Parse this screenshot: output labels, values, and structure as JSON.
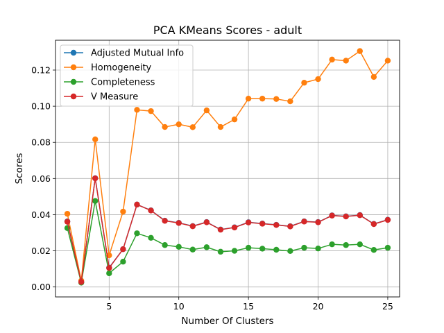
{
  "chart_data": {
    "type": "line",
    "title": "PCA KMeans Scores - adult",
    "xlabel": "Number Of Clusters",
    "ylabel": "Scores",
    "xlim": [
      1.15,
      25.85
    ],
    "ylim": [
      -0.0055,
      0.1365
    ],
    "xticks": [
      5,
      10,
      15,
      20,
      25
    ],
    "yticks": [
      0.0,
      0.02,
      0.04,
      0.06,
      0.08,
      0.1,
      0.12
    ],
    "ytick_labels": [
      "0.00",
      "0.02",
      "0.04",
      "0.06",
      "0.08",
      "0.10",
      "0.12"
    ],
    "grid": true,
    "legend_position": "top-left",
    "x": [
      2,
      3,
      4,
      5,
      6,
      7,
      8,
      9,
      10,
      11,
      12,
      13,
      14,
      15,
      16,
      17,
      18,
      19,
      20,
      21,
      22,
      23,
      24,
      25
    ],
    "series": [
      {
        "name": "Adjusted Mutual Info",
        "color": "#1f77b4",
        "values": [
          0.0363,
          0.0027,
          0.0602,
          0.0107,
          0.0209,
          0.0456,
          0.0424,
          0.0367,
          0.0355,
          0.0337,
          0.0359,
          0.0318,
          0.033,
          0.0358,
          0.0351,
          0.0344,
          0.0336,
          0.0363,
          0.0359,
          0.0396,
          0.0391,
          0.0398,
          0.0349,
          0.0372
        ]
      },
      {
        "name": "Homogeneity",
        "color": "#ff7f0e",
        "values": [
          0.0405,
          0.0035,
          0.0817,
          0.0175,
          0.0417,
          0.098,
          0.0973,
          0.0885,
          0.09,
          0.0884,
          0.0977,
          0.0885,
          0.0927,
          0.1042,
          0.1042,
          0.104,
          0.1027,
          0.113,
          0.115,
          0.1258,
          0.1252,
          0.1305,
          0.1162,
          0.1252
        ]
      },
      {
        "name": "Completeness",
        "color": "#2ca02c",
        "values": [
          0.0326,
          0.0024,
          0.0476,
          0.0076,
          0.014,
          0.0297,
          0.0272,
          0.0232,
          0.0222,
          0.0207,
          0.022,
          0.0195,
          0.02,
          0.0217,
          0.0212,
          0.0206,
          0.0199,
          0.0217,
          0.0213,
          0.0236,
          0.0232,
          0.0236,
          0.0205,
          0.0217
        ]
      },
      {
        "name": "V Measure",
        "color": "#d62728",
        "values": [
          0.0361,
          0.0028,
          0.0601,
          0.0105,
          0.0209,
          0.0456,
          0.0423,
          0.0366,
          0.0354,
          0.0336,
          0.0358,
          0.0317,
          0.0329,
          0.0357,
          0.035,
          0.0343,
          0.0335,
          0.0362,
          0.0358,
          0.0395,
          0.039,
          0.0397,
          0.0348,
          0.0371
        ]
      }
    ]
  }
}
